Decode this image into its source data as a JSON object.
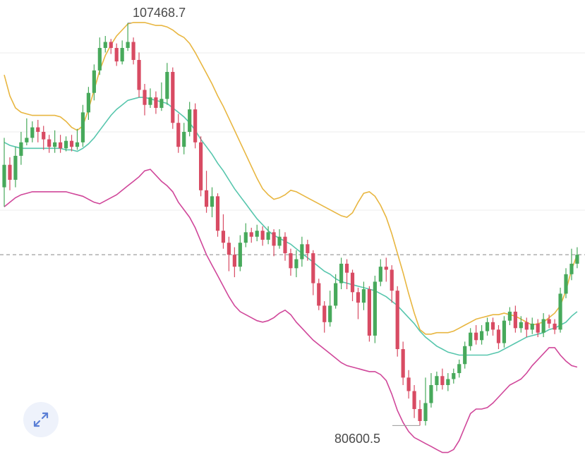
{
  "chart_data": {
    "type": "candlestick",
    "indicator": "bollinger-bands",
    "ylim": [
      78500,
      109000
    ],
    "high_label": "107468.7",
    "low_label": "80600.5",
    "reference_line": 92000,
    "colors": {
      "up": "#47a95b",
      "down": "#d84b63",
      "upper_band": "#e8b640",
      "middle_band": "#57c6ad",
      "lower_band": "#d0479a",
      "grid": "#eeeeee",
      "reference": "#888888"
    },
    "grid": true,
    "candles": [
      [
        96500,
        98000,
        99800,
        95200
      ],
      [
        98000,
        97000,
        98500,
        96300
      ],
      [
        97000,
        98600,
        99200,
        96500
      ],
      [
        98600,
        99500,
        100200,
        98000
      ],
      [
        99500,
        99800,
        101100,
        99300
      ],
      [
        99800,
        100500,
        100900,
        99500
      ],
      [
        100500,
        100200,
        101000,
        99500
      ],
      [
        100200,
        99700,
        100600,
        99000
      ],
      [
        99700,
        99200,
        100000,
        98800
      ],
      [
        99200,
        99500,
        100300,
        98800
      ],
      [
        99500,
        99100,
        100000,
        98800
      ],
      [
        99100,
        99600,
        99900,
        98900
      ],
      [
        99600,
        99200,
        100000,
        98900
      ],
      [
        99200,
        99500,
        100400,
        99000
      ],
      [
        99500,
        101500,
        102000,
        99200
      ],
      [
        101500,
        102800,
        103200,
        101000
      ],
      [
        102800,
        104300,
        104700,
        102300
      ],
      [
        104300,
        105800,
        106500,
        104000
      ],
      [
        105800,
        106200,
        106600,
        105500
      ],
      [
        106200,
        105800,
        106400,
        105400
      ],
      [
        105800,
        104900,
        106100,
        104600
      ],
      [
        104900,
        105800,
        106300,
        104700
      ],
      [
        105800,
        106200,
        107468.7,
        105600
      ],
      [
        106200,
        105000,
        106500,
        104700
      ],
      [
        105000,
        103000,
        105500,
        102500
      ],
      [
        103000,
        102000,
        103400,
        101300
      ],
      [
        102000,
        102500,
        103100,
        101800
      ],
      [
        102500,
        101800,
        102900,
        101400
      ],
      [
        101800,
        102400,
        103500,
        101600
      ],
      [
        102400,
        104200,
        104800,
        102000
      ],
      [
        104200,
        100800,
        104500,
        100400
      ],
      [
        100800,
        99200,
        101400,
        98800
      ],
      [
        99200,
        100200,
        100800,
        98700
      ],
      [
        100200,
        101700,
        102200,
        99900
      ],
      [
        101700,
        99500,
        102100,
        99100
      ],
      [
        99500,
        96300,
        99900,
        95900
      ],
      [
        96300,
        95200,
        97600,
        94800
      ],
      [
        95200,
        95900,
        96500,
        94500
      ],
      [
        95900,
        93600,
        96100,
        93200
      ],
      [
        93600,
        92800,
        94700,
        92400
      ],
      [
        92800,
        92000,
        93200,
        90900
      ],
      [
        92000,
        91200,
        92500,
        90500
      ],
      [
        91200,
        92800,
        93300,
        90900
      ],
      [
        92800,
        93500,
        94100,
        92500
      ],
      [
        93500,
        93200,
        93800,
        92800
      ],
      [
        93200,
        93600,
        94000,
        92900
      ],
      [
        93600,
        93000,
        93900,
        92600
      ],
      [
        93000,
        93500,
        93900,
        92700
      ],
      [
        93500,
        92600,
        93700,
        91900
      ],
      [
        92600,
        93200,
        93700,
        92400
      ],
      [
        93200,
        92100,
        93500,
        91600
      ],
      [
        92100,
        91100,
        92400,
        90600
      ],
      [
        91100,
        91700,
        92300,
        90500
      ],
      [
        91700,
        92700,
        93200,
        91200
      ],
      [
        92700,
        92100,
        93000,
        91600
      ],
      [
        92100,
        90100,
        92300,
        89300
      ],
      [
        90100,
        88600,
        90400,
        88300
      ],
      [
        88600,
        87500,
        88900,
        86800
      ],
      [
        87500,
        88600,
        89600,
        87200
      ],
      [
        88600,
        90100,
        90700,
        88400
      ],
      [
        90100,
        91400,
        91800,
        89700
      ],
      [
        91400,
        90800,
        91700,
        89700
      ],
      [
        90800,
        89500,
        91000,
        88900
      ],
      [
        89500,
        88800,
        89800,
        87700
      ],
      [
        88800,
        89700,
        90200,
        88300
      ],
      [
        89700,
        86600,
        89900,
        86200
      ],
      [
        86600,
        90200,
        90600,
        86100
      ],
      [
        90200,
        91200,
        91700,
        89900
      ],
      [
        91200,
        91000,
        91800,
        90200
      ],
      [
        91000,
        89600,
        91300,
        88800
      ],
      [
        89600,
        85700,
        89900,
        85200
      ],
      [
        85700,
        83800,
        86200,
        83300
      ],
      [
        83800,
        82900,
        84300,
        82400
      ],
      [
        82900,
        81700,
        83300,
        81100
      ],
      [
        81700,
        80900,
        82300,
        80600.5
      ],
      [
        80900,
        82100,
        83800,
        80600.5
      ],
      [
        82100,
        83300,
        84100,
        81800
      ],
      [
        83300,
        83900,
        84200,
        82900
      ],
      [
        83900,
        83300,
        84400,
        83000
      ],
      [
        83300,
        83700,
        84100,
        82900
      ],
      [
        83700,
        84100,
        84400,
        83400
      ],
      [
        84100,
        84700,
        85000,
        83800
      ],
      [
        84700,
        85900,
        86200,
        84400
      ],
      [
        85900,
        86800,
        87100,
        85600
      ],
      [
        86800,
        86300,
        87300,
        86000
      ],
      [
        86300,
        86900,
        87300,
        86000
      ],
      [
        86900,
        87500,
        87800,
        86600
      ],
      [
        87500,
        87000,
        87800,
        86600
      ],
      [
        87000,
        86100,
        87300,
        85700
      ],
      [
        86100,
        87600,
        87900,
        85800
      ],
      [
        87600,
        88200,
        88500,
        87300
      ],
      [
        88200,
        87100,
        88600,
        86800
      ],
      [
        87100,
        87500,
        87900,
        86800
      ],
      [
        87500,
        87000,
        87800,
        86500
      ],
      [
        87000,
        87400,
        87800,
        86700
      ],
      [
        87400,
        86800,
        87700,
        86500
      ],
      [
        86800,
        87700,
        88100,
        86500
      ],
      [
        87700,
        87400,
        88000,
        87100
      ],
      [
        87400,
        87000,
        87700,
        86700
      ],
      [
        87000,
        89400,
        89800,
        86800
      ],
      [
        89400,
        90700,
        91100,
        89100
      ],
      [
        90700,
        91400,
        92400,
        90300
      ],
      [
        91400,
        92000,
        92500,
        91100
      ]
    ],
    "bands": {
      "upper": [
        104000,
        102600,
        101800,
        101500,
        101400,
        101300,
        101300,
        101300,
        101300,
        101300,
        101200,
        100900,
        100500,
        100300,
        100600,
        101700,
        103000,
        104300,
        105300,
        106000,
        106600,
        107000,
        107400,
        107500,
        107500,
        107500,
        107400,
        107300,
        107300,
        107200,
        107000,
        106700,
        106500,
        106100,
        105500,
        104800,
        104100,
        103400,
        102600,
        101900,
        101100,
        100300,
        99500,
        98700,
        97900,
        97100,
        96400,
        96000,
        95700,
        95800,
        96000,
        96300,
        96200,
        96000,
        95800,
        95600,
        95400,
        95200,
        95000,
        94800,
        94600,
        94500,
        94800,
        95500,
        96100,
        96200,
        95900,
        95300,
        94500,
        93400,
        92100,
        90800,
        89400,
        88100,
        87000,
        86700,
        86700,
        86800,
        86800,
        86800,
        86900,
        87100,
        87300,
        87500,
        87700,
        87800,
        87900,
        88000,
        88000,
        88100,
        88000,
        87900,
        87700,
        87500,
        87300,
        87400,
        87500,
        87800,
        88100,
        88600,
        89600,
        91000,
        92000
      ],
      "middle": [
        99500,
        99300,
        99200,
        99100,
        99100,
        99100,
        99100,
        99100,
        99100,
        99100,
        99100,
        99000,
        99000,
        98900,
        99100,
        99400,
        99800,
        100300,
        100800,
        101300,
        101700,
        102000,
        102300,
        102400,
        102500,
        102500,
        102400,
        102300,
        102200,
        102100,
        101800,
        101500,
        101200,
        100800,
        100300,
        99700,
        99200,
        98700,
        98100,
        97600,
        97000,
        96400,
        95900,
        95400,
        94900,
        94400,
        94000,
        93600,
        93300,
        93100,
        92900,
        92700,
        92400,
        92100,
        91800,
        91500,
        91200,
        90900,
        90700,
        90400,
        90200,
        90100,
        90000,
        89900,
        89800,
        89700,
        89600,
        89400,
        89200,
        88900,
        88600,
        88200,
        87800,
        87400,
        86900,
        86500,
        86200,
        85900,
        85700,
        85500,
        85400,
        85300,
        85300,
        85300,
        85300,
        85300,
        85300,
        85400,
        85500,
        85700,
        85900,
        86100,
        86300,
        86500,
        86600,
        86700,
        86800,
        87000,
        87100,
        87300,
        87500,
        87900,
        88200
      ],
      "lower": [
        95200,
        95500,
        95800,
        96000,
        96100,
        96200,
        96200,
        96200,
        96200,
        96200,
        96200,
        96200,
        96100,
        96000,
        95900,
        95700,
        95500,
        95400,
        95600,
        95800,
        96000,
        96300,
        96600,
        96900,
        97200,
        97600,
        97700,
        97300,
        96900,
        96600,
        96200,
        95500,
        95000,
        94500,
        93800,
        92900,
        92000,
        91300,
        90600,
        89900,
        89200,
        88600,
        88200,
        88000,
        87800,
        87600,
        87500,
        87600,
        87800,
        88100,
        88300,
        88000,
        87500,
        87100,
        86700,
        86300,
        86000,
        85700,
        85400,
        85100,
        84800,
        84600,
        84500,
        84400,
        84300,
        84200,
        84200,
        84000,
        83600,
        82700,
        81600,
        80800,
        80200,
        79800,
        79600,
        79400,
        79200,
        79000,
        78800,
        78800,
        79000,
        79600,
        80500,
        81400,
        81700,
        81700,
        81800,
        82100,
        82500,
        82900,
        83300,
        83500,
        83700,
        84100,
        84600,
        85000,
        85400,
        85800,
        85800,
        85300,
        84900,
        84600,
        84500
      ]
    }
  },
  "ui": {
    "expand_icon": "expand-arrows-icon"
  }
}
